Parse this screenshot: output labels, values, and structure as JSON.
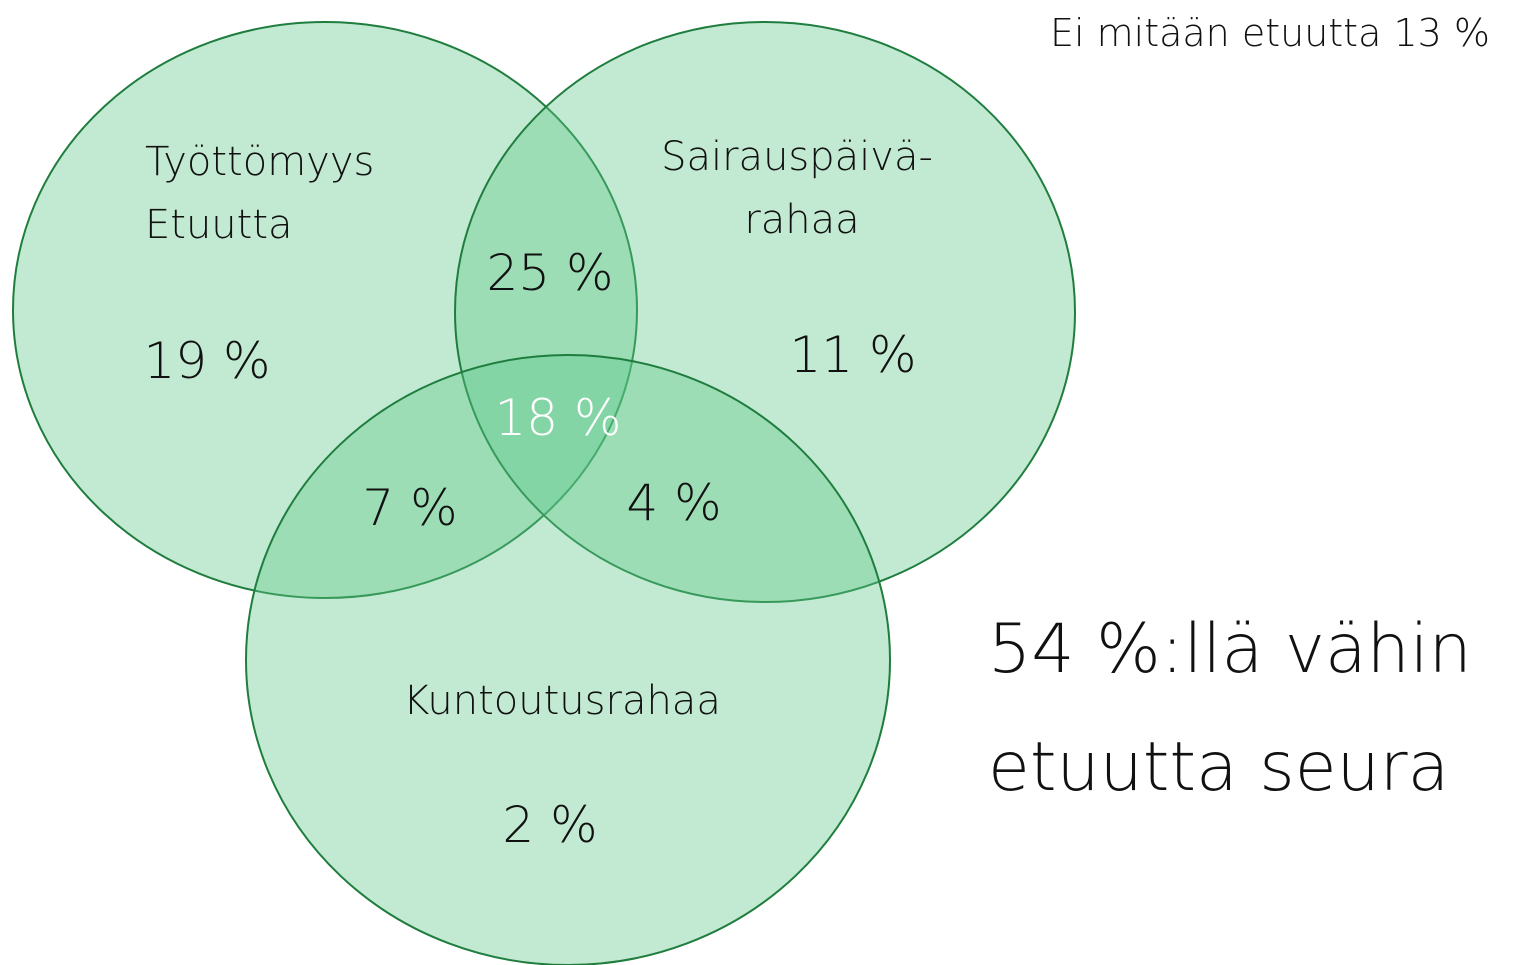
{
  "note_top": "Ei mitään etuutta 13 %",
  "sets": [
    {
      "label_lines": [
        "Työttömyys",
        "Etuutta"
      ]
    },
    {
      "label_lines": [
        "Sairauspäivä-",
        "rahaa"
      ]
    },
    {
      "label_lines": [
        "Kuntoutusrahaa"
      ]
    }
  ],
  "regions": {
    "only_1": "19 %",
    "only_2": "11 %",
    "only_3": "2 %",
    "1_2": "25 %",
    "1_3": "7 %",
    "2_3": "4 %",
    "1_2_3": "18 %"
  },
  "summary_lines": [
    "54 %:llä vähin",
    "etuutta seura"
  ]
}
